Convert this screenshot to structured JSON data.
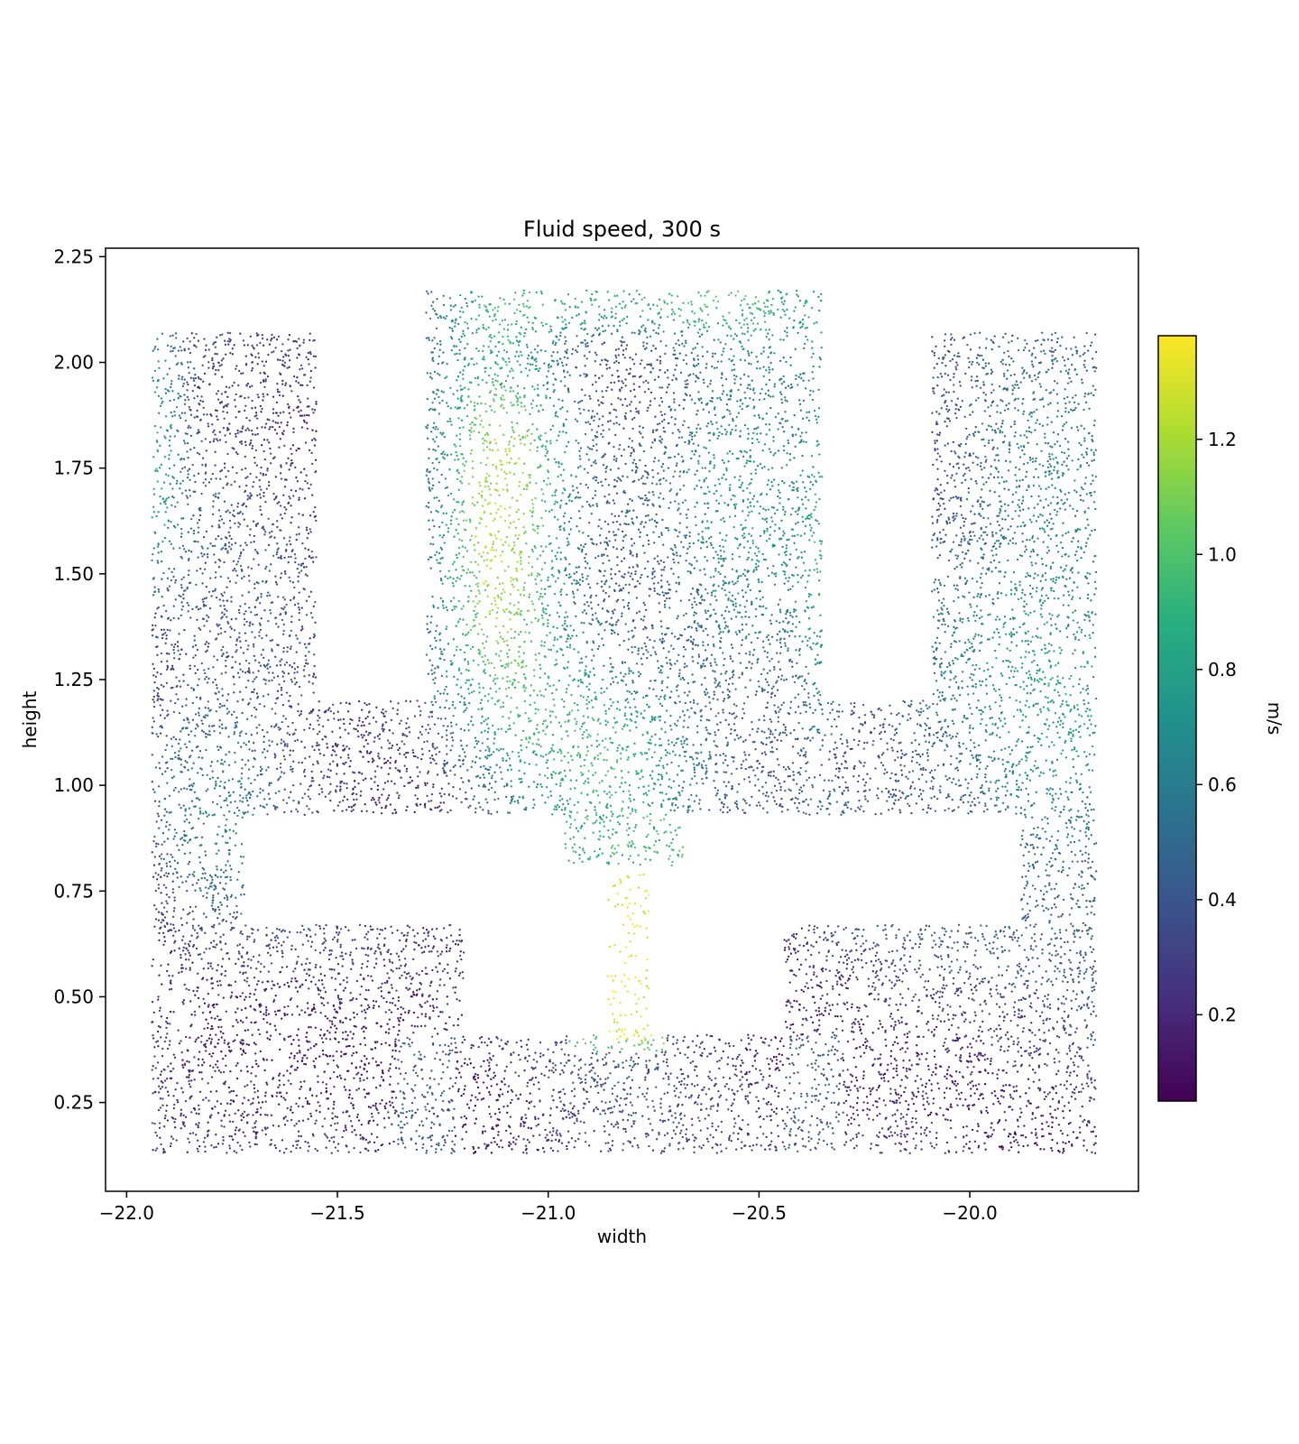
{
  "chart_data": {
    "type": "scatter",
    "title": "Fluid speed, 300 s",
    "xlabel": "width",
    "ylabel": "height",
    "xlim": [
      -22.05,
      -19.6
    ],
    "ylim": [
      0.04,
      2.27
    ],
    "x_ticks": [
      -22.0,
      -21.5,
      -21.0,
      -20.5,
      -20.0
    ],
    "x_tick_labels": [
      "−22.0",
      "−21.5",
      "−21.0",
      "−20.5",
      "−20.0"
    ],
    "y_ticks": [
      0.25,
      0.5,
      0.75,
      1.0,
      1.25,
      1.5,
      1.75,
      2.0,
      2.25
    ],
    "y_tick_labels": [
      "0.25",
      "0.50",
      "0.75",
      "1.00",
      "1.25",
      "1.50",
      "1.75",
      "2.00",
      "2.25"
    ],
    "grid": false,
    "colormap": "viridis",
    "colorbar": {
      "label": "m/s",
      "range": [
        0.05,
        1.38
      ],
      "ticks": [
        0.2,
        0.4,
        0.6,
        0.8,
        1.0,
        1.2
      ],
      "tick_labels": [
        "0.2",
        "0.4",
        "0.6",
        "0.8",
        "1.0",
        "1.2"
      ]
    },
    "regions": [
      {
        "name": "upper-left-column",
        "x": [
          -21.94,
          -21.55
        ],
        "y": [
          1.2,
          2.07
        ]
      },
      {
        "name": "left-column",
        "x": [
          -21.94,
          -21.72
        ],
        "y": [
          0.13,
          1.2
        ]
      },
      {
        "name": "upper-left-arm",
        "x": [
          -21.72,
          -21.29
        ],
        "y": [
          0.93,
          1.2
        ]
      },
      {
        "name": "central-tank",
        "x": [
          -21.29,
          -20.35
        ],
        "y": [
          0.93,
          2.17
        ]
      },
      {
        "name": "upper-right-arm",
        "x": [
          -20.35,
          -19.88
        ],
        "y": [
          0.93,
          1.2
        ]
      },
      {
        "name": "upper-right-column",
        "x": [
          -20.09,
          -19.7
        ],
        "y": [
          1.2,
          2.07
        ]
      },
      {
        "name": "right-column",
        "x": [
          -19.88,
          -19.7
        ],
        "y": [
          0.13,
          1.2
        ]
      },
      {
        "name": "central-nozzle",
        "x": [
          -20.96,
          -20.68
        ],
        "y": [
          0.81,
          0.93
        ]
      },
      {
        "name": "central-jet",
        "x": [
          -20.86,
          -20.76
        ],
        "y": [
          0.41,
          0.79
        ]
      },
      {
        "name": "lower-left-basin",
        "x": [
          -21.72,
          -21.2
        ],
        "y": [
          0.13,
          0.67
        ]
      },
      {
        "name": "lower-channel",
        "x": [
          -21.2,
          -20.44
        ],
        "y": [
          0.13,
          0.41
        ]
      },
      {
        "name": "lower-right-basin",
        "x": [
          -20.44,
          -19.88
        ],
        "y": [
          0.13,
          0.67
        ]
      }
    ]
  }
}
